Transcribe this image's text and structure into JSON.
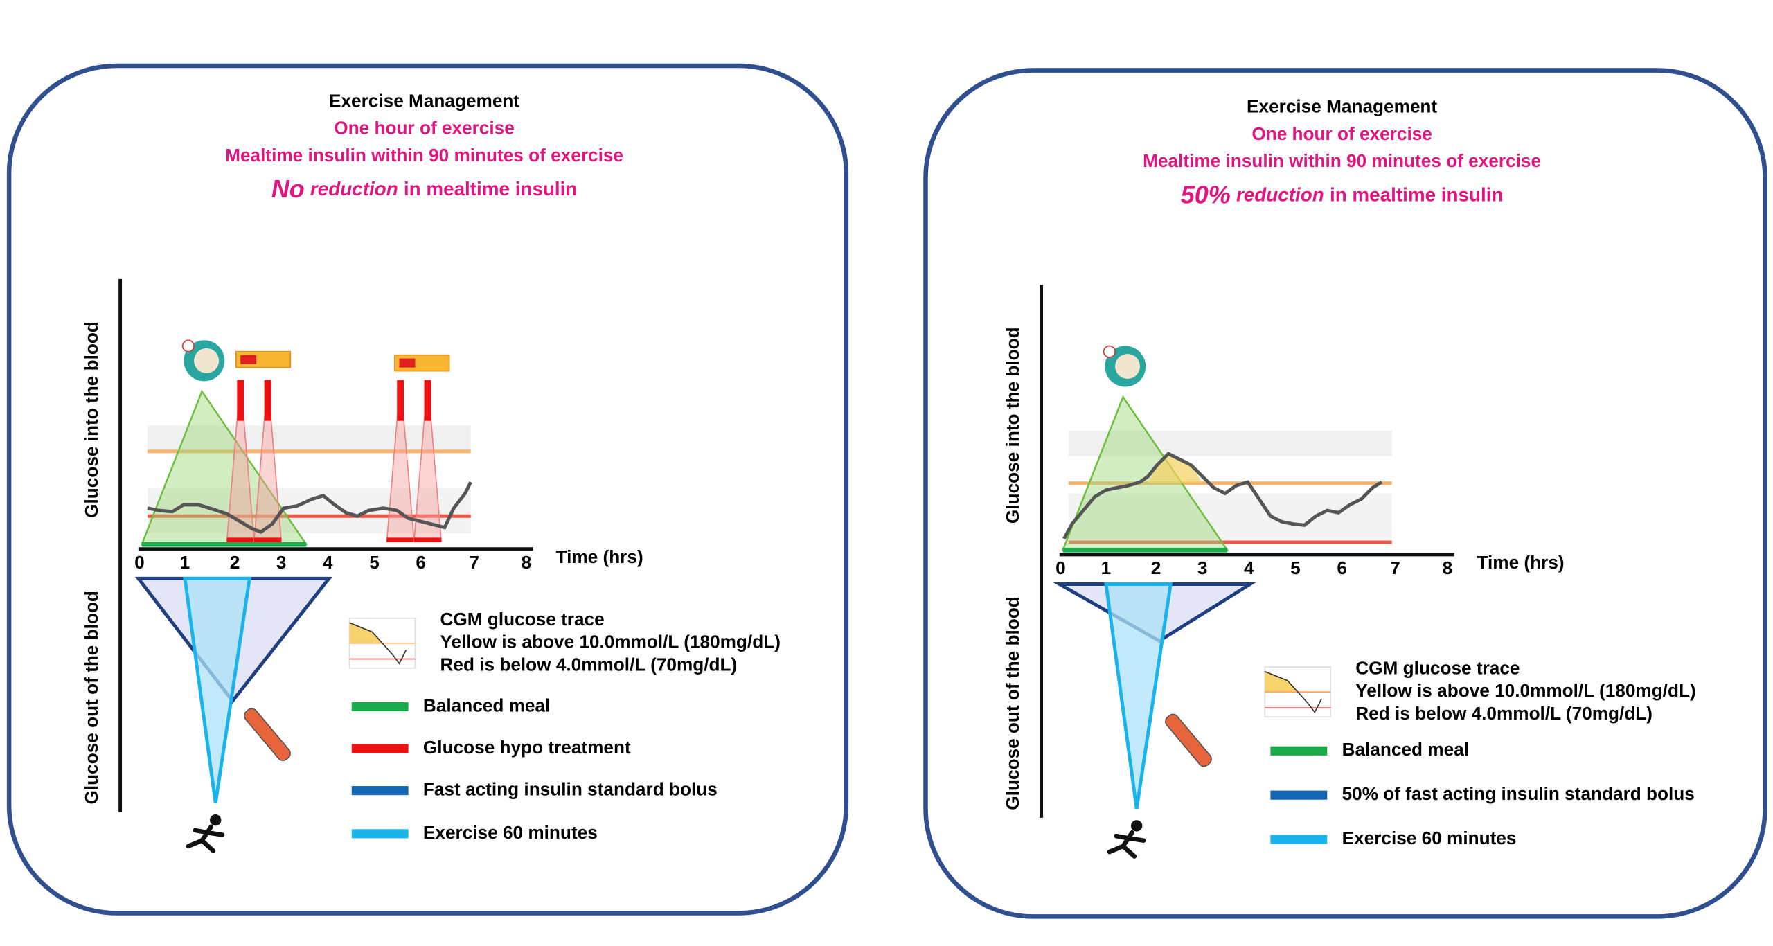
{
  "panels": [
    {
      "title": "Exercise Management",
      "line1": "One hour of exercise",
      "line2": "Mealtime insulin within 90 minutes of exercise",
      "line3_amount": "No",
      "line3_word": "reduction",
      "line3_rest": "in mealtime insulin",
      "y_label_top": "Glucose into the blood",
      "y_label_bottom": "Glucose out of the blood",
      "x_label": "Time (hrs)",
      "x_ticks": [
        0,
        1,
        2,
        3,
        4,
        5,
        6,
        7,
        8
      ],
      "cgm_title": "CGM glucose trace",
      "cgm_yellow": "Yellow is above 10.0mmol/L (180mg/dL)",
      "cgm_red": "Red is below 4.0mmol/L (70mg/dL)",
      "legend": [
        {
          "label": "Balanced meal",
          "color": "#1aaa4a"
        },
        {
          "label": "Glucose hypo treatment",
          "color": "#ee1111"
        },
        {
          "label": "Fast acting insulin standard bolus",
          "color": "#1565b5"
        },
        {
          "label": "Exercise 60 minutes",
          "color": "#19b4ec"
        }
      ]
    },
    {
      "title": "Exercise Management",
      "line1": "One hour of exercise",
      "line2": "Mealtime insulin within 90 minutes of exercise",
      "line3_amount": "50%",
      "line3_word": "reduction",
      "line3_rest": "in mealtime insulin",
      "y_label_top": "Glucose into the blood",
      "y_label_bottom": "Glucose out of the blood",
      "x_label": "Time (hrs)",
      "x_ticks": [
        0,
        1,
        2,
        3,
        4,
        5,
        6,
        7,
        8
      ],
      "cgm_title": "CGM glucose trace",
      "cgm_yellow": "Yellow is above 10.0mmol/L (180mg/dL)",
      "cgm_red": "Red is below 4.0mmol/L (70mg/dL)",
      "legend": [
        {
          "label": "Balanced meal",
          "color": "#1aaa4a"
        },
        {
          "label": "50% of fast acting insulin standard bolus",
          "color": "#1565b5"
        },
        {
          "label": "Exercise 60 minutes",
          "color": "#19b4ec"
        }
      ]
    }
  ]
}
